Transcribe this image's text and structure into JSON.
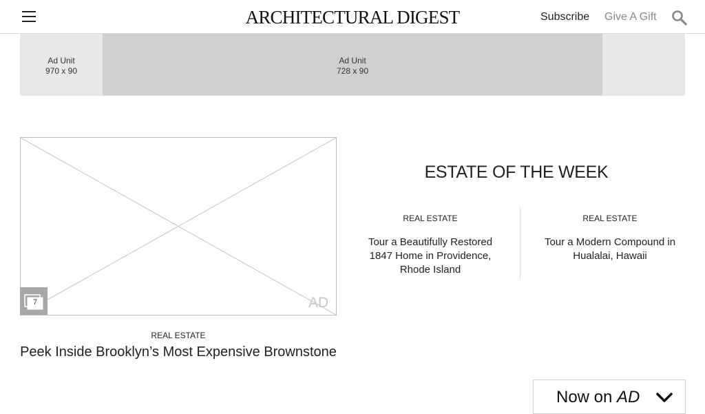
{
  "header": {
    "logo": "ARCHITECTURAL DIGEST",
    "subscribe_label": "Subscribe",
    "gift_label": "Give A Gift",
    "menu_icon": "hamburger-menu-icon",
    "search_icon": "search-icon"
  },
  "ad_banner": {
    "outer_label": "Ad Unit",
    "outer_size": "970 x 90",
    "inner_label": "Ad Unit",
    "inner_size": "728 x 90"
  },
  "feature": {
    "gallery_count": "7",
    "ad_watermark": "AD",
    "kicker": "REAL ESTATE",
    "title": "Peek Inside Brooklyn’s Most Expensive Brownstone"
  },
  "estate_of_week": {
    "heading": "ESTATE OF THE WEEK",
    "cards": [
      {
        "kicker": "REAL ESTATE",
        "title": "Tour a Beautifully Restored 1847 Home in Providence, Rhode Island"
      },
      {
        "kicker": "REAL ESTATE",
        "title": "Tour a Modern Compound in Hualalai, Hawaii"
      }
    ]
  },
  "now_on": {
    "prefix": "Now on",
    "brand": "AD",
    "icon": "chevron-down-icon"
  },
  "colors": {
    "ad_outer": "#e8e8e9",
    "ad_inner": "#cfd0d2",
    "gallery_badge": "#a7a7a7",
    "muted_text": "#888888"
  }
}
